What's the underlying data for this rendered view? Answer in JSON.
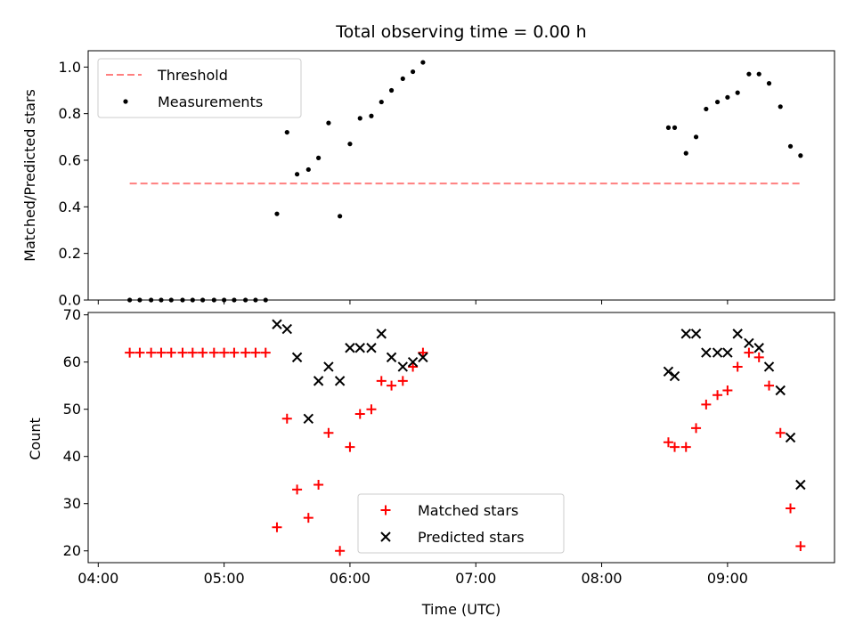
{
  "chart_data": [
    {
      "type": "scatter",
      "title": "Total observing time = 0.00 h",
      "ylabel": "Matched/Predicted stars",
      "xlabel": "",
      "x_unit": "hours UTC (decimal)",
      "xlim": [
        3.92,
        9.85
      ],
      "ylim": [
        0,
        1.07
      ],
      "yticks": [
        0.0,
        0.2,
        0.4,
        0.6,
        0.8,
        1.0
      ],
      "ytick_labels": [
        "0.0",
        "0.2",
        "0.4",
        "0.6",
        "0.8",
        "1.0"
      ],
      "show_xtick_labels": false,
      "legend": {
        "placement": "upper-left"
      },
      "series": [
        {
          "name": "Threshold",
          "kind": "dashed-line",
          "color": "#ff7f7f",
          "points": [
            [
              4.25,
              0.5
            ],
            [
              9.58,
              0.5
            ]
          ]
        },
        {
          "name": "Measurements",
          "kind": "dot",
          "color": "#000000",
          "points": [
            [
              4.25,
              0.0
            ],
            [
              4.33,
              0.0
            ],
            [
              4.42,
              0.0
            ],
            [
              4.5,
              0.0
            ],
            [
              4.58,
              0.0
            ],
            [
              4.67,
              0.0
            ],
            [
              4.75,
              0.0
            ],
            [
              4.83,
              0.0
            ],
            [
              4.92,
              0.0
            ],
            [
              5.0,
              0.0
            ],
            [
              5.08,
              0.0
            ],
            [
              5.17,
              0.0
            ],
            [
              5.25,
              0.0
            ],
            [
              5.33,
              0.0
            ],
            [
              5.42,
              0.37
            ],
            [
              5.5,
              0.72
            ],
            [
              5.58,
              0.54
            ],
            [
              5.67,
              0.56
            ],
            [
              5.75,
              0.61
            ],
            [
              5.83,
              0.76
            ],
            [
              5.92,
              0.36
            ],
            [
              6.0,
              0.67
            ],
            [
              6.08,
              0.78
            ],
            [
              6.17,
              0.79
            ],
            [
              6.25,
              0.85
            ],
            [
              6.33,
              0.9
            ],
            [
              6.42,
              0.95
            ],
            [
              6.5,
              0.98
            ],
            [
              6.58,
              1.02
            ],
            [
              8.53,
              0.74
            ],
            [
              8.58,
              0.74
            ],
            [
              8.67,
              0.63
            ],
            [
              8.75,
              0.7
            ],
            [
              8.83,
              0.82
            ],
            [
              8.92,
              0.85
            ],
            [
              9.0,
              0.87
            ],
            [
              9.08,
              0.89
            ],
            [
              9.17,
              0.97
            ],
            [
              9.25,
              0.97
            ],
            [
              9.33,
              0.93
            ],
            [
              9.42,
              0.83
            ],
            [
              9.5,
              0.66
            ],
            [
              9.58,
              0.62
            ]
          ]
        }
      ]
    },
    {
      "type": "scatter",
      "title": "",
      "ylabel": "Count",
      "xlabel": "Time (UTC)",
      "x_unit": "hours UTC (decimal)",
      "xlim": [
        3.92,
        9.85
      ],
      "ylim": [
        17.5,
        70.5
      ],
      "yticks": [
        20,
        30,
        40,
        50,
        60,
        70
      ],
      "ytick_labels": [
        "20",
        "30",
        "40",
        "50",
        "60",
        "70"
      ],
      "xticks": [
        4,
        5,
        6,
        7,
        8,
        9
      ],
      "xtick_labels": [
        "04:00",
        "05:00",
        "06:00",
        "07:00",
        "08:00",
        "09:00"
      ],
      "legend": {
        "placement": "lower-center"
      },
      "series": [
        {
          "name": "Matched stars",
          "kind": "plus",
          "color": "#ff0000",
          "points": [
            [
              4.25,
              62
            ],
            [
              4.33,
              62
            ],
            [
              4.42,
              62
            ],
            [
              4.5,
              62
            ],
            [
              4.58,
              62
            ],
            [
              4.67,
              62
            ],
            [
              4.75,
              62
            ],
            [
              4.83,
              62
            ],
            [
              4.92,
              62
            ],
            [
              5.0,
              62
            ],
            [
              5.08,
              62
            ],
            [
              5.17,
              62
            ],
            [
              5.25,
              62
            ],
            [
              5.33,
              62
            ],
            [
              5.42,
              25
            ],
            [
              5.5,
              48
            ],
            [
              5.58,
              33
            ],
            [
              5.67,
              27
            ],
            [
              5.75,
              34
            ],
            [
              5.83,
              45
            ],
            [
              5.92,
              20
            ],
            [
              6.0,
              42
            ],
            [
              6.08,
              49
            ],
            [
              6.17,
              50
            ],
            [
              6.25,
              56
            ],
            [
              6.33,
              55
            ],
            [
              6.42,
              56
            ],
            [
              6.5,
              59
            ],
            [
              6.58,
              62
            ],
            [
              8.53,
              43
            ],
            [
              8.58,
              42
            ],
            [
              8.67,
              42
            ],
            [
              8.75,
              46
            ],
            [
              8.83,
              51
            ],
            [
              8.92,
              53
            ],
            [
              9.0,
              54
            ],
            [
              9.08,
              59
            ],
            [
              9.17,
              62
            ],
            [
              9.25,
              61
            ],
            [
              9.33,
              55
            ],
            [
              9.42,
              45
            ],
            [
              9.5,
              29
            ],
            [
              9.58,
              21
            ]
          ]
        },
        {
          "name": "Predicted stars",
          "kind": "x",
          "color": "#000000",
          "points": [
            [
              5.42,
              68
            ],
            [
              5.5,
              67
            ],
            [
              5.58,
              61
            ],
            [
              5.67,
              48
            ],
            [
              5.75,
              56
            ],
            [
              5.83,
              59
            ],
            [
              5.92,
              56
            ],
            [
              6.0,
              63
            ],
            [
              6.08,
              63
            ],
            [
              6.17,
              63
            ],
            [
              6.25,
              66
            ],
            [
              6.33,
              61
            ],
            [
              6.42,
              59
            ],
            [
              6.5,
              60
            ],
            [
              6.58,
              61
            ],
            [
              8.53,
              58
            ],
            [
              8.58,
              57
            ],
            [
              8.67,
              66
            ],
            [
              8.75,
              66
            ],
            [
              8.83,
              62
            ],
            [
              8.92,
              62
            ],
            [
              9.0,
              62
            ],
            [
              9.08,
              66
            ],
            [
              9.17,
              64
            ],
            [
              9.25,
              63
            ],
            [
              9.33,
              59
            ],
            [
              9.42,
              54
            ],
            [
              9.5,
              44
            ],
            [
              9.58,
              34
            ]
          ]
        }
      ]
    }
  ]
}
